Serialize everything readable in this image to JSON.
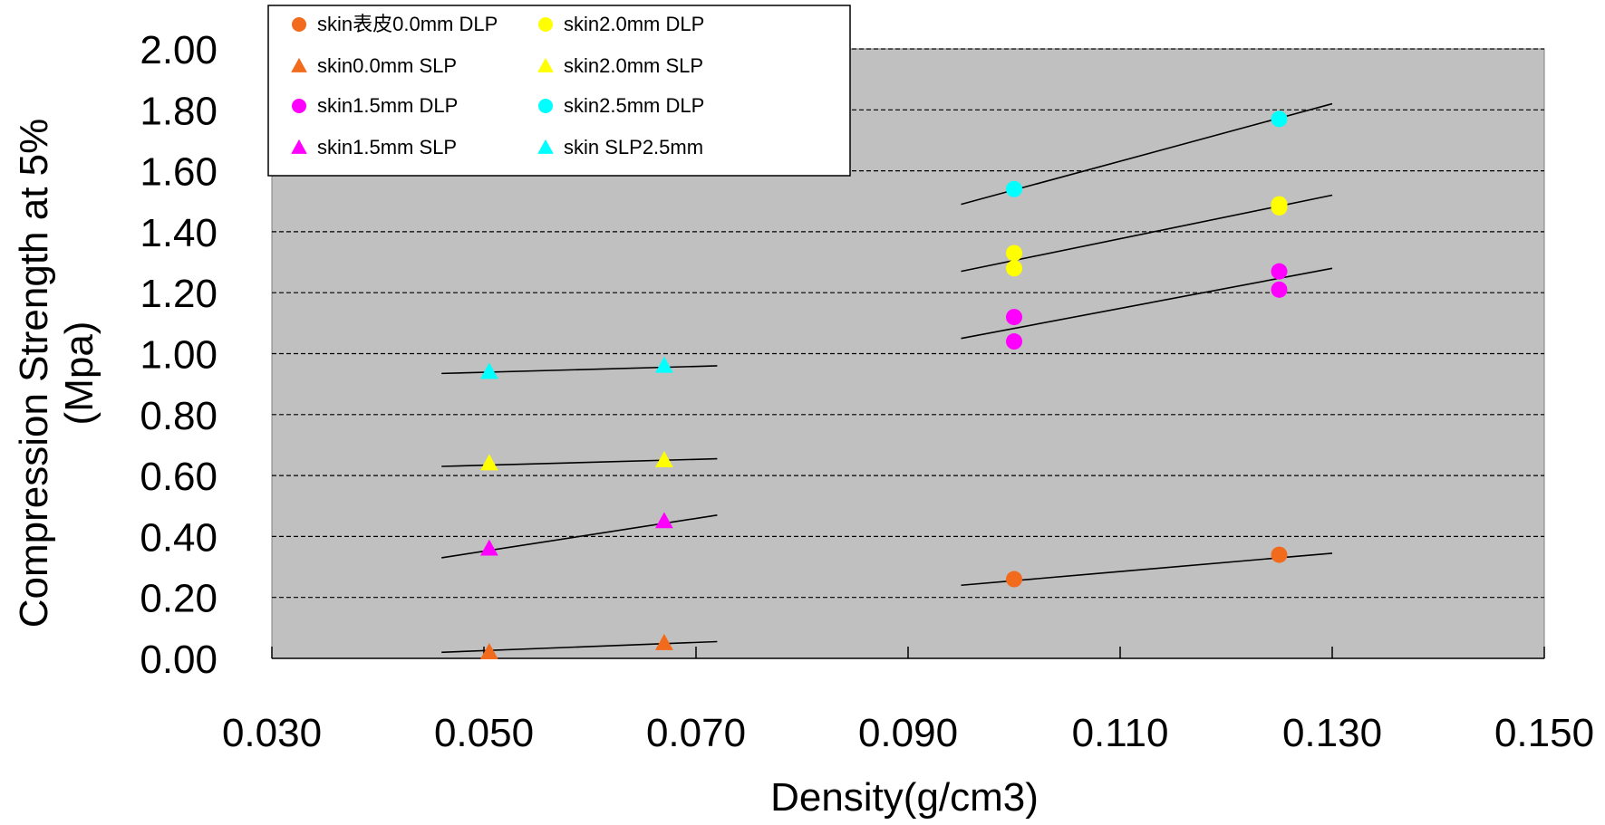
{
  "chart_data": {
    "type": "scatter",
    "xlabel": "Density(g/cm3)",
    "ylabel_lines": [
      "Compression Strength at 5%",
      "(Mpa)"
    ],
    "xlim": [
      0.03,
      0.15
    ],
    "ylim": [
      0.0,
      2.0
    ],
    "x_ticks": [
      "0.030",
      "0.050",
      "0.070",
      "0.090",
      "0.110",
      "0.130",
      "0.150"
    ],
    "y_ticks": [
      "0.00",
      "0.20",
      "0.40",
      "0.60",
      "0.80",
      "1.00",
      "1.20",
      "1.40",
      "1.60",
      "1.80",
      "2.00"
    ],
    "grid": "horizontal dashed",
    "plot_background": "#c0c0c0",
    "legend_position": "top-left",
    "series": [
      {
        "name": "skin表皮0.0mm DLP",
        "marker": "circle",
        "color": "#f26a1b",
        "points": [
          [
            0.1,
            0.26
          ],
          [
            0.125,
            0.34
          ]
        ],
        "trend": [
          [
            0.095,
            0.24
          ],
          [
            0.13,
            0.345
          ]
        ]
      },
      {
        "name": "skin0.0mm SLP",
        "marker": "triangle",
        "color": "#f26a1b",
        "points": [
          [
            0.0505,
            0.02
          ],
          [
            0.067,
            0.05
          ]
        ],
        "trend": [
          [
            0.046,
            0.02
          ],
          [
            0.072,
            0.055
          ]
        ]
      },
      {
        "name": "skin1.5mm DLP",
        "marker": "circle",
        "color": "#ff00ff",
        "points": [
          [
            0.1,
            1.12
          ],
          [
            0.1,
            1.04
          ],
          [
            0.125,
            1.27
          ],
          [
            0.125,
            1.21
          ]
        ],
        "trend": [
          [
            0.095,
            1.05
          ],
          [
            0.13,
            1.28
          ]
        ]
      },
      {
        "name": "skin1.5mm SLP",
        "marker": "triangle",
        "color": "#ff00ff",
        "points": [
          [
            0.0505,
            0.36
          ],
          [
            0.067,
            0.45
          ]
        ],
        "trend": [
          [
            0.046,
            0.33
          ],
          [
            0.072,
            0.47
          ]
        ]
      },
      {
        "name": "skin2.0mm DLP",
        "marker": "circle",
        "color": "#ffff00",
        "points": [
          [
            0.1,
            1.33
          ],
          [
            0.1,
            1.28
          ],
          [
            0.125,
            1.49
          ],
          [
            0.125,
            1.48
          ]
        ],
        "trend": [
          [
            0.095,
            1.27
          ],
          [
            0.13,
            1.52
          ]
        ]
      },
      {
        "name": "skin2.0mm SLP",
        "marker": "triangle",
        "color": "#ffff00",
        "points": [
          [
            0.0505,
            0.64
          ],
          [
            0.067,
            0.65
          ]
        ],
        "trend": [
          [
            0.046,
            0.63
          ],
          [
            0.072,
            0.655
          ]
        ]
      },
      {
        "name": "skin2.5mm DLP",
        "marker": "circle",
        "color": "#00ffff",
        "points": [
          [
            0.1,
            1.54
          ],
          [
            0.125,
            1.77
          ]
        ],
        "trend": [
          [
            0.095,
            1.49
          ],
          [
            0.13,
            1.82
          ]
        ]
      },
      {
        "name": "skin SLP2.5mm",
        "marker": "triangle",
        "color": "#00ffff",
        "points": [
          [
            0.0505,
            0.94
          ],
          [
            0.067,
            0.96
          ]
        ],
        "trend": [
          [
            0.046,
            0.935
          ],
          [
            0.072,
            0.96
          ]
        ]
      }
    ],
    "legend_layout": [
      [
        "skin表皮0.0mm DLP",
        "skin2.0mm DLP"
      ],
      [
        "skin0.0mm SLP",
        "skin2.0mm SLP"
      ],
      [
        "skin1.5mm DLP",
        "skin2.5mm DLP"
      ],
      [
        "skin1.5mm SLP",
        "skin SLP2.5mm"
      ]
    ]
  }
}
